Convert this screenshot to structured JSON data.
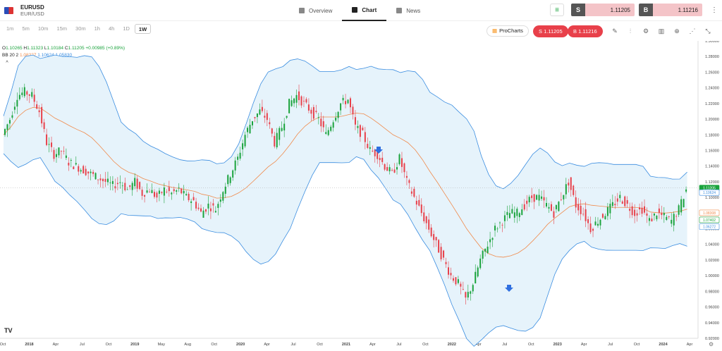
{
  "symbol": {
    "ticker": "EURUSD",
    "pair": "EUR/USD"
  },
  "nav": [
    {
      "label": "Overview"
    },
    {
      "label": "Chart"
    },
    {
      "label": "News"
    }
  ],
  "trade": {
    "sell_key": "S",
    "sell_price": "1.11205",
    "buy_key": "B",
    "buy_price": "1.11216"
  },
  "timeframes": [
    "1m",
    "5m",
    "10m",
    "15m",
    "30m",
    "1h",
    "4h",
    "1D",
    "1W"
  ],
  "active_timeframe": "1W",
  "prochart_label": "ProCharts",
  "sell_button": "S 1.11205",
  "buy_button": "B 1.11216",
  "legend": {
    "o": "O",
    "o_val": "1.10265",
    "h": "H",
    "h_val": "1.11323",
    "l": "L",
    "l_val": "1.10184",
    "c": "C",
    "c_val": "1.11205",
    "chg": "+0.00985 (+0.89%)",
    "bb": "BB 20 2",
    "bb_mid": "1.08227",
    "bb_up": "1.10624",
    "bb_low": "1.05830"
  },
  "tools": [
    "pencil-icon",
    "indicators-icon",
    "settings-icon",
    "chart-type-icon",
    "add-icon",
    "share-icon",
    "fullscreen-icon"
  ],
  "chart_data": {
    "type": "candlestick",
    "ylim": [
      0.92,
      1.3
    ],
    "y_ticks": [
      "1.30000",
      "1.28000",
      "1.26000",
      "1.24000",
      "1.22000",
      "1.20000",
      "1.18000",
      "1.16000",
      "1.14000",
      "1.12000",
      "1.10000",
      "1.08000",
      "1.06000",
      "1.04000",
      "1.02000",
      "1.00000",
      "0.98000",
      "0.96000",
      "0.94000",
      "0.92000"
    ],
    "x_ticks": [
      "Oct",
      "2018",
      "Apr",
      "Jul",
      "Oct",
      "2019",
      "May",
      "Aug",
      "Oct",
      "2020",
      "Apr",
      "Jul",
      "Oct",
      "2021",
      "Apr",
      "Jul",
      "Oct",
      "2022",
      "Apr",
      "Jul",
      "Oct",
      "2023",
      "Apr",
      "Jul",
      "Oct",
      "2024",
      "Apr"
    ],
    "price_labels": [
      {
        "text": "1.11205",
        "color": "#1aa33c"
      },
      {
        "text": "1.10624",
        "color": "#3a8de0"
      },
      {
        "text": "1.08308",
        "color": "#f08a4b"
      },
      {
        "text": "1.07402",
        "color": "#1aa33c"
      },
      {
        "text": "1.06272",
        "color": "#3a8de0"
      }
    ],
    "close_path": [
      1.18,
      1.2,
      1.23,
      1.235,
      1.23,
      1.21,
      1.17,
      1.155,
      1.16,
      1.145,
      1.14,
      1.135,
      1.13,
      1.125,
      1.12,
      1.115,
      1.12,
      1.11,
      1.12,
      1.105,
      1.11,
      1.1,
      1.11,
      1.105,
      1.11,
      1.1,
      1.095,
      1.08,
      1.09,
      1.085,
      1.11,
      1.13,
      1.15,
      1.18,
      1.2,
      1.21,
      1.2,
      1.17,
      1.19,
      1.22,
      1.23,
      1.22,
      1.21,
      1.2,
      1.18,
      1.2,
      1.22,
      1.225,
      1.19,
      1.18,
      1.16,
      1.155,
      1.14,
      1.13,
      1.15,
      1.12,
      1.1,
      1.08,
      1.06,
      1.04,
      1.02,
      1.0,
      0.99,
      0.97,
      0.99,
      1.02,
      1.04,
      1.06,
      1.07,
      1.08,
      1.08,
      1.09,
      1.1,
      1.1,
      1.09,
      1.08,
      1.1,
      1.12,
      1.09,
      1.08,
      1.06,
      1.07,
      1.08,
      1.09,
      1.1,
      1.09,
      1.08,
      1.085,
      1.07,
      1.08,
      1.075,
      1.07,
      1.085,
      1.11
    ]
  }
}
